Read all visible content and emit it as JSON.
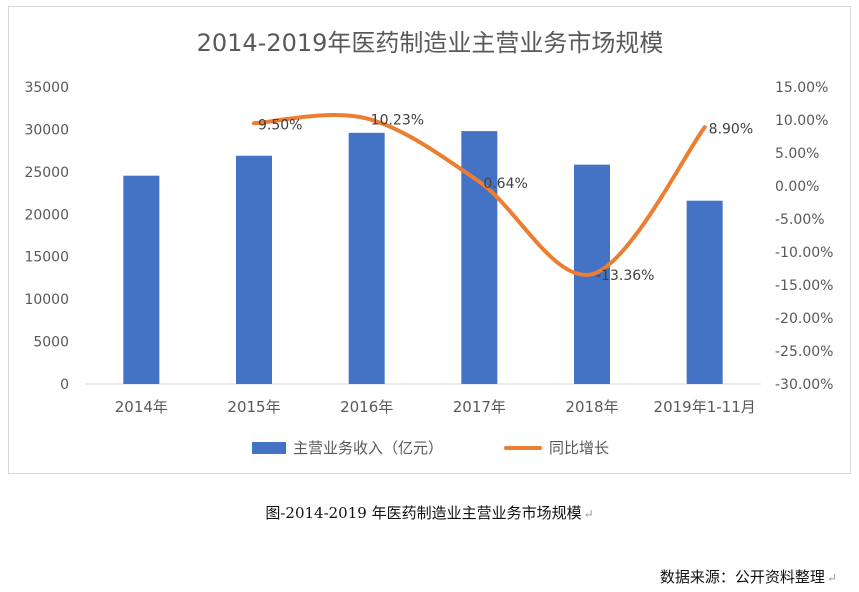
{
  "chart_data": {
    "type": "bar",
    "title": "2014-2019年医药制造业主营业务市场规模",
    "categories": [
      "2014年",
      "2015年",
      "2016年",
      "2017年",
      "2018年",
      "2019年1-11月"
    ],
    "series": [
      {
        "name": "主营业务收入（亿元）",
        "type": "bar",
        "axis": "left",
        "color": "#4472c4",
        "values": [
          24550,
          26900,
          29600,
          29800,
          25850,
          21600
        ]
      },
      {
        "name": "同比增长",
        "type": "line",
        "axis": "right",
        "color": "#ed7d31",
        "smooth": true,
        "values": [
          null,
          9.5,
          10.23,
          0.64,
          -13.36,
          8.9
        ],
        "labels": [
          "",
          "9.50%",
          "10.23%",
          "0.64%",
          "-13.36%",
          "8.90%"
        ]
      }
    ],
    "y_left": {
      "min": 0,
      "max": 35000,
      "step": 5000,
      "ticks": [
        "0",
        "5000",
        "10000",
        "15000",
        "20000",
        "25000",
        "30000",
        "35000"
      ]
    },
    "y_right": {
      "min": -30,
      "max": 15,
      "step": 5,
      "ticks": [
        "-30.00%",
        "-25.00%",
        "-20.00%",
        "-15.00%",
        "-10.00%",
        "-5.00%",
        "0.00%",
        "5.00%",
        "10.00%",
        "15.00%"
      ]
    },
    "grid": false,
    "legend_position": "bottom"
  },
  "caption": "图-2014-2019 年医药制造业主营业务市场规模",
  "source": "数据来源：公开资料整理",
  "return_mark": "↵"
}
